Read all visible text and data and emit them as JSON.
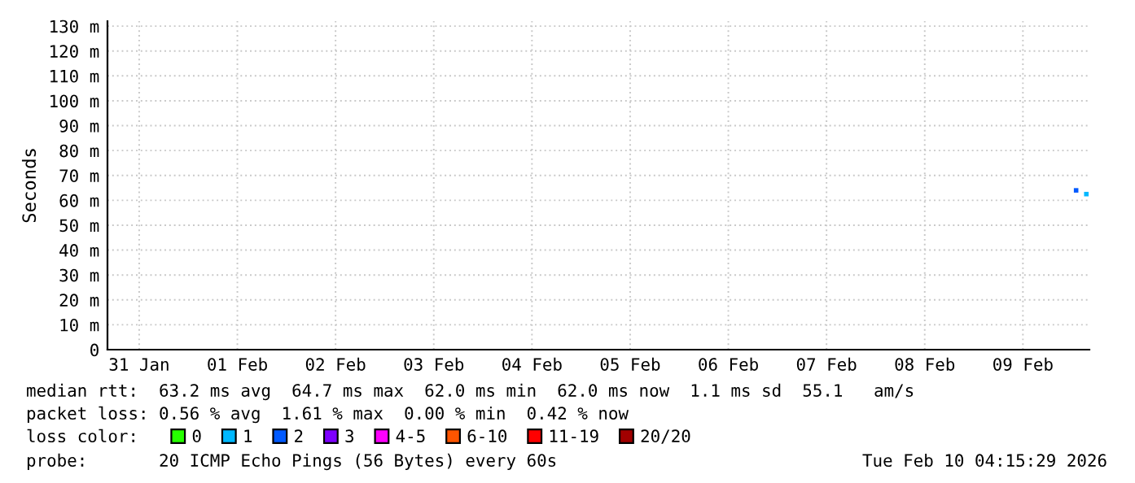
{
  "chart_data": {
    "type": "scatter",
    "ylabel": "Seconds",
    "x": [
      "2026-02-10T01:00",
      "2026-02-10T03:30"
    ],
    "xlim": [
      "2026-01-31T04:15",
      "2026-02-10T04:15"
    ],
    "xticks": [
      {
        "value": "2026-01-31T12:00",
        "label": "31 Jan"
      },
      {
        "value": "2026-02-01T12:00",
        "label": "01 Feb"
      },
      {
        "value": "2026-02-02T12:00",
        "label": "02 Feb"
      },
      {
        "value": "2026-02-03T12:00",
        "label": "03 Feb"
      },
      {
        "value": "2026-02-04T12:00",
        "label": "04 Feb"
      },
      {
        "value": "2026-02-05T12:00",
        "label": "05 Feb"
      },
      {
        "value": "2026-02-06T12:00",
        "label": "06 Feb"
      },
      {
        "value": "2026-02-07T12:00",
        "label": "07 Feb"
      },
      {
        "value": "2026-02-08T12:00",
        "label": "08 Feb"
      },
      {
        "value": "2026-02-09T12:00",
        "label": "09 Feb"
      }
    ],
    "ylim": [
      0,
      132
    ],
    "yticks": [
      0,
      {
        "value": 10,
        "label": "10 m"
      },
      {
        "value": 20,
        "label": "20 m"
      },
      {
        "value": 30,
        "label": "30 m"
      },
      {
        "value": 40,
        "label": "40 m"
      },
      {
        "value": 50,
        "label": "50 m"
      },
      {
        "value": 60,
        "label": "60 m"
      },
      {
        "value": 70,
        "label": "70 m"
      },
      {
        "value": 80,
        "label": "80 m"
      },
      {
        "value": 90,
        "label": "90 m"
      },
      {
        "value": 100,
        "label": "100 m"
      },
      {
        "value": 110,
        "label": "110 m"
      },
      {
        "value": 120,
        "label": "120 m"
      },
      {
        "value": 130,
        "label": "130 m"
      }
    ],
    "grid": true,
    "marker": "square",
    "legend": "bottom",
    "legend_title": "loss color:",
    "series": [
      {
        "name": "0",
        "color": "#26ff00",
        "values": [
          null,
          null
        ]
      },
      {
        "name": "1",
        "color": "#00b8ff",
        "values": [
          null,
          62.5
        ]
      },
      {
        "name": "2",
        "color": "#0059ff",
        "values": [
          64,
          null
        ]
      },
      {
        "name": "3",
        "color": "#7e00ff",
        "values": [
          null,
          null
        ]
      },
      {
        "name": "4-5",
        "color": "#ff00ff",
        "values": [
          null,
          null
        ]
      },
      {
        "name": "6-10",
        "color": "#ff5500",
        "values": [
          null,
          null
        ]
      },
      {
        "name": "11-19",
        "color": "#ff0000",
        "values": [
          null,
          null
        ]
      },
      {
        "name": "20/20",
        "color": "#a10000",
        "values": [
          null,
          null
        ]
      }
    ],
    "annotations": [
      "median rtt:  63.2 ms avg  64.7 ms max  62.0 ms min  62.0 ms now  1.1 ms sd  55.1   am/s",
      "packet loss: 0.56 % avg  1.61 % max  0.00 % min  0.42 % now",
      "probe:       20 ICMP Echo Pings (56 Bytes) every 60s",
      "Tue Feb 10 04:15:29 2026"
    ]
  }
}
